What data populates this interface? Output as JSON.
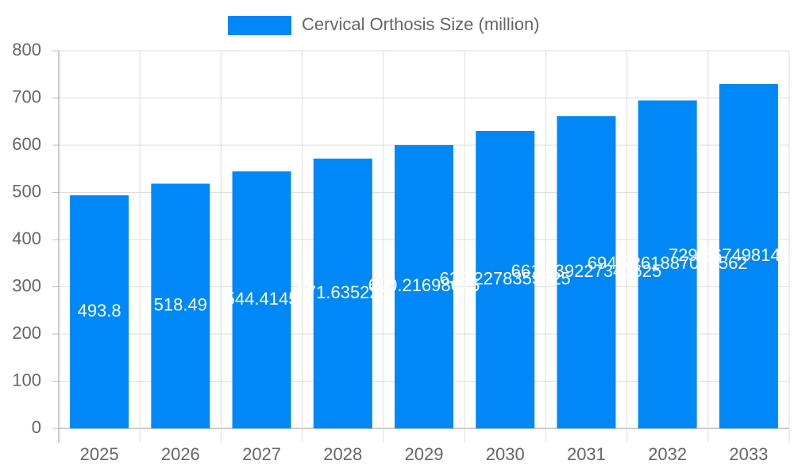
{
  "chart_data": {
    "type": "bar",
    "categories": [
      "2025",
      "2026",
      "2027",
      "2028",
      "2029",
      "2030",
      "2031",
      "2032",
      "2033"
    ],
    "series": [
      {
        "name": "Cervical Orthosis Size (million)",
        "color": "#0088f7",
        "values": [
          493.8,
          518.49,
          544.4145,
          571.635225,
          600.21698625,
          630.2278355625,
          661.739227340625,
          694.8261887076562,
          729.5674981430391
        ]
      }
    ],
    "ylim": [
      0,
      800
    ],
    "yticks": [
      0,
      100,
      200,
      300,
      400,
      500,
      600,
      700,
      800
    ],
    "grid": true,
    "legend": "top"
  }
}
